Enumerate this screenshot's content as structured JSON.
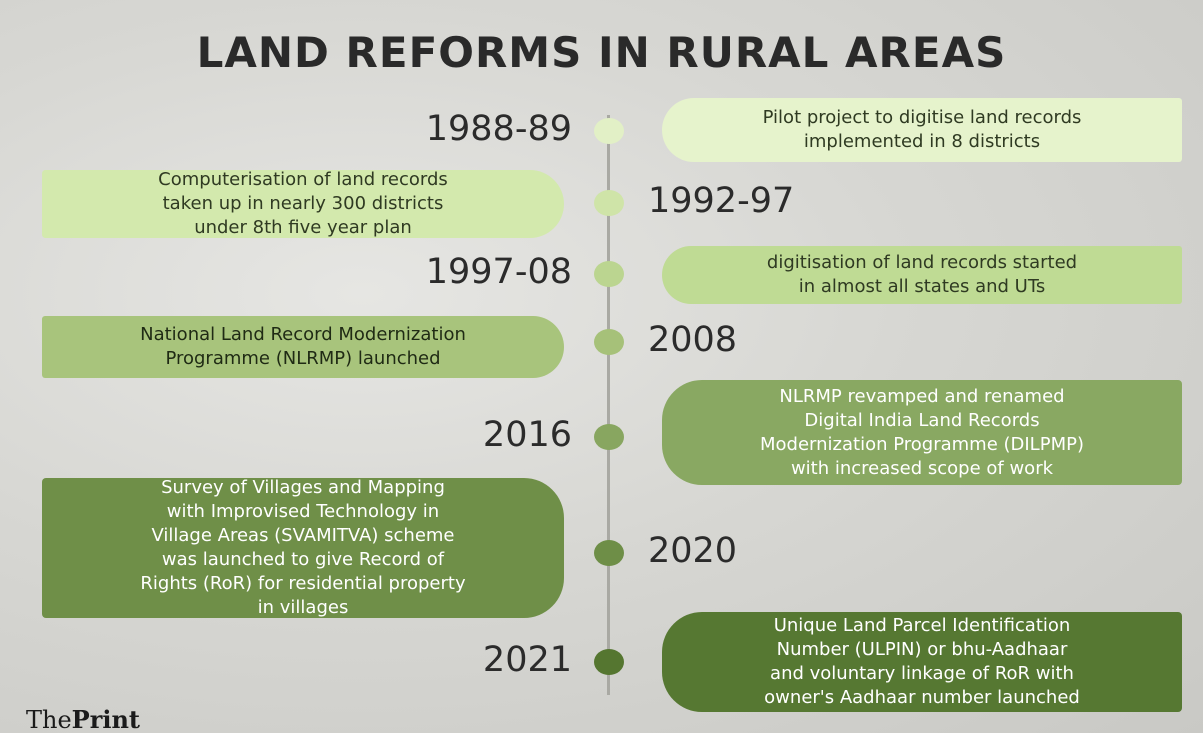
{
  "title": "LAND REFORMS IN RURAL AREAS",
  "events": [
    {
      "year": "1988-89",
      "lines": [
        "Pilot project to digitise land records",
        "implemented in 8 districts"
      ]
    },
    {
      "year": "1992-97",
      "lines": [
        "Computerisation of land records",
        "taken up in nearly 300 districts",
        "under 8th five year plan"
      ]
    },
    {
      "year": "1997-08",
      "lines": [
        "digitisation of land records started",
        "in almost all states and UTs"
      ]
    },
    {
      "year": "2008",
      "lines": [
        "National Land Record Modernization",
        "Programme (NLRMP) launched"
      ]
    },
    {
      "year": "2016",
      "lines": [
        "NLRMP revamped and renamed",
        "Digital India Land Records",
        "Modernization Programme (DILPMP)",
        "with increased scope of work"
      ]
    },
    {
      "year": "2020",
      "lines": [
        "Survey of Villages and Mapping",
        "with  Improvised Technology in",
        "Village Areas (SVAMITVA) scheme",
        "was launched to give Record of",
        "Rights (RoR) for residential property",
        "in villages"
      ]
    },
    {
      "year": "2021",
      "lines": [
        "Unique Land Parcel Identification",
        "Number (ULPIN) or bhu-Aadhaar",
        "and voluntary linkage of RoR with",
        "owner's Aadhaar number launched"
      ]
    }
  ],
  "brand": [
    "The",
    "Print"
  ]
}
